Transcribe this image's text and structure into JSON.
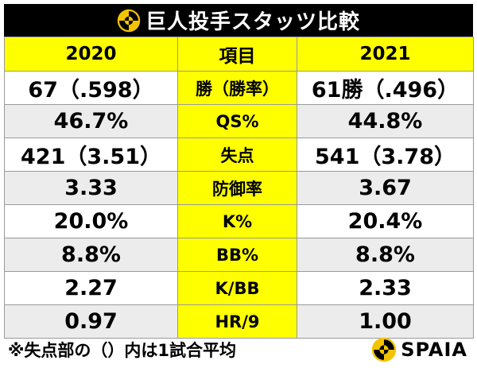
{
  "title": "巨人投手スタッツ比較",
  "colors": {
    "header_bg": "#000000",
    "highlight": "#ffff00",
    "row_alt": "#ececec",
    "logo_yellow": "#f3c300"
  },
  "table": {
    "headers": [
      "2020",
      "項目",
      "2021"
    ],
    "rows": [
      {
        "y2020": "67（.598）",
        "item": "勝（勝率）",
        "y2021": "61勝（.496）"
      },
      {
        "y2020": "46.7%",
        "item": "QS%",
        "y2021": "44.8%"
      },
      {
        "y2020": "421（3.51）",
        "item": "失点",
        "y2021": "541（3.78）"
      },
      {
        "y2020": "3.33",
        "item": "防御率",
        "y2021": "3.67"
      },
      {
        "y2020": "20.0%",
        "item": "K%",
        "y2021": "20.4%"
      },
      {
        "y2020": "8.8%",
        "item": "BB%",
        "y2021": "8.8%"
      },
      {
        "y2020": "2.27",
        "item": "K/BB",
        "y2021": "2.33"
      },
      {
        "y2020": "0.97",
        "item": "HR/9",
        "y2021": "1.00"
      }
    ]
  },
  "footnote": "※失点部の（）内は1試合平均",
  "brand": {
    "name": "SPAIA",
    "icon": "spaia-logo-icon"
  }
}
